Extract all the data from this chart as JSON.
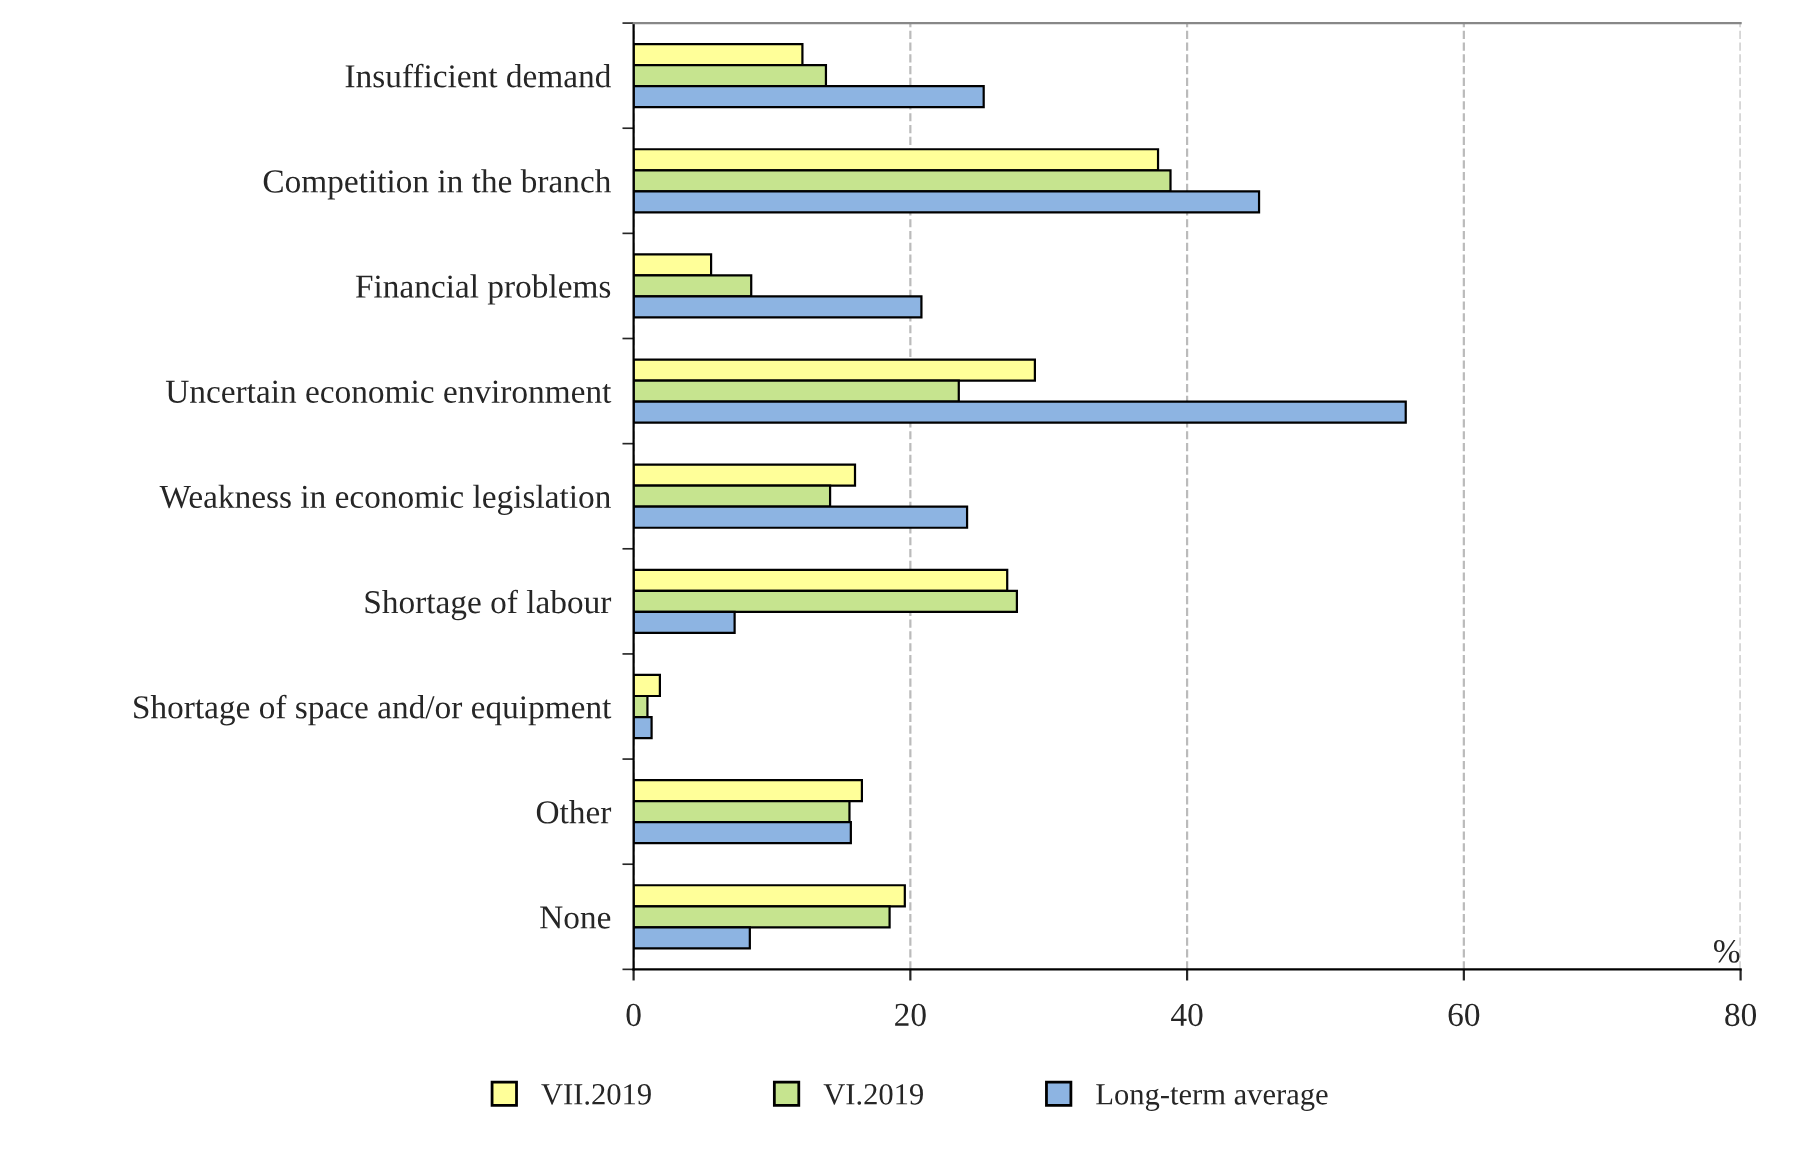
{
  "chart_data": {
    "type": "bar",
    "orientation": "horizontal",
    "xlabel": "%",
    "categories": [
      "Insufficient demand",
      "Competition in the branch",
      "Financial problems",
      "Uncertain economic environment",
      "Weakness in economic legislation",
      "Shortage of labour",
      "Shortage of space and/or equipment",
      "Other",
      "None"
    ],
    "series": [
      {
        "name": "VII.2019",
        "color": "#ffff99",
        "values": [
          12.2,
          37.9,
          5.6,
          29.0,
          16.0,
          27.0,
          1.9,
          16.5,
          19.6
        ]
      },
      {
        "name": "VI.2019",
        "color": "#c6e48f",
        "values": [
          13.9,
          38.8,
          8.5,
          23.5,
          14.2,
          27.7,
          1.0,
          15.6,
          18.5
        ]
      },
      {
        "name": "Long-term average",
        "color": "#8db4e2",
        "values": [
          25.3,
          45.2,
          20.8,
          55.8,
          24.1,
          7.3,
          1.3,
          15.7,
          8.4
        ]
      }
    ],
    "xlim": [
      0,
      80
    ],
    "xticks": [
      0,
      20,
      40,
      60,
      80
    ],
    "grid": "x",
    "legend": "bottom"
  }
}
